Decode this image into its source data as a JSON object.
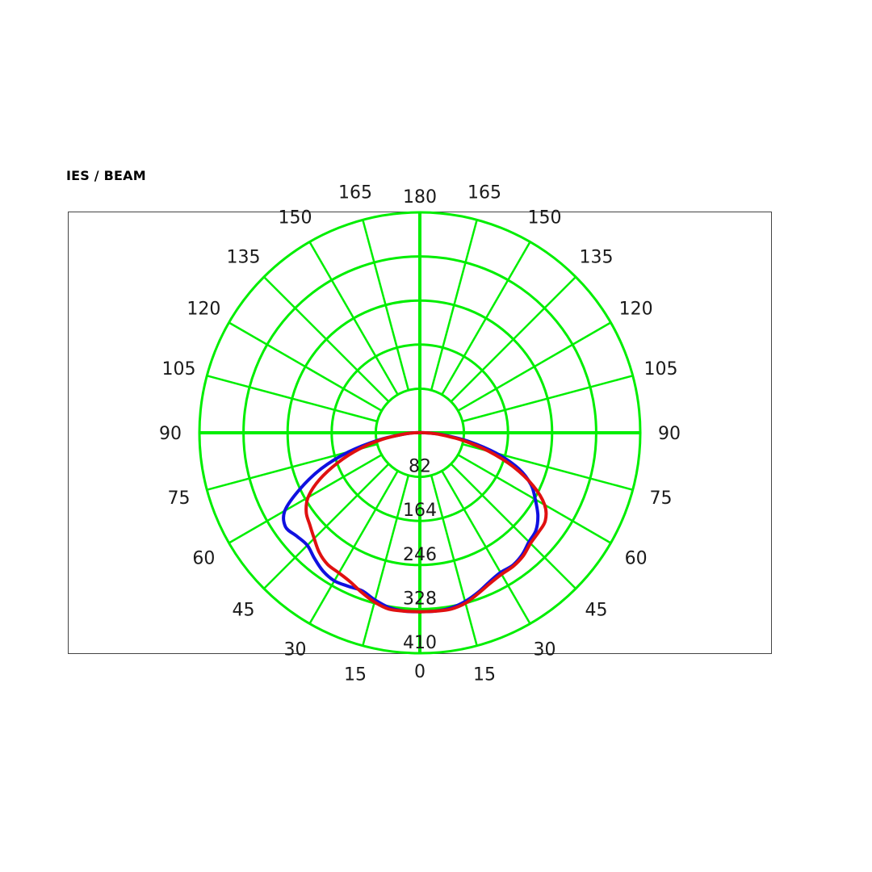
{
  "heading": "IES / BEAM",
  "chart_data": {
    "type": "polar",
    "title": "IES / BEAM",
    "angle_labels_left": [
      "165",
      "150",
      "135",
      "120",
      "105",
      "90",
      "75",
      "60",
      "45",
      "30",
      "15"
    ],
    "angle_labels_right": [
      "165",
      "150",
      "135",
      "120",
      "105",
      "90",
      "75",
      "60",
      "45",
      "30",
      "15"
    ],
    "angle_label_top": "180",
    "angle_label_bottom": "0",
    "radial_ticks": [
      82,
      164,
      246,
      328,
      410
    ],
    "radial_tick_labels": [
      "82",
      "164",
      "246",
      "328",
      "410"
    ],
    "rmax": 410,
    "grid_color": "#00ee00",
    "series": [
      {
        "color": "#1010e0",
        "angles_deg": [
          0,
          5,
          10,
          15,
          20,
          25,
          30,
          35,
          40,
          45,
          50,
          55,
          60,
          65,
          70,
          75,
          80,
          85,
          90
        ],
        "left_values": [
          333,
          333,
          330,
          322,
          313,
          315,
          318,
          314,
          305,
          296,
          299,
          305,
          290,
          245,
          195,
          137,
          78,
          32,
          10
        ],
        "right_values": [
          333,
          333,
          331,
          325,
          316,
          306,
          300,
          301,
          296,
          287,
          282,
          268,
          248,
          228,
          196,
          147,
          92,
          42,
          10
        ]
      },
      {
        "color": "#e01010",
        "angles_deg": [
          0,
          5,
          10,
          15,
          20,
          25,
          30,
          35,
          40,
          45,
          50,
          55,
          60,
          65,
          70,
          75,
          80,
          85,
          90
        ],
        "left_values": [
          333,
          333,
          333,
          326,
          316,
          306,
          301,
          299,
          291,
          278,
          267,
          258,
          240,
          206,
          162,
          117,
          72,
          32,
          10
        ],
        "right_values": [
          333,
          333,
          333,
          328,
          318,
          309,
          304,
          303,
          299,
          291,
          288,
          285,
          268,
          232,
          185,
          132,
          80,
          37,
          10
        ]
      }
    ]
  }
}
